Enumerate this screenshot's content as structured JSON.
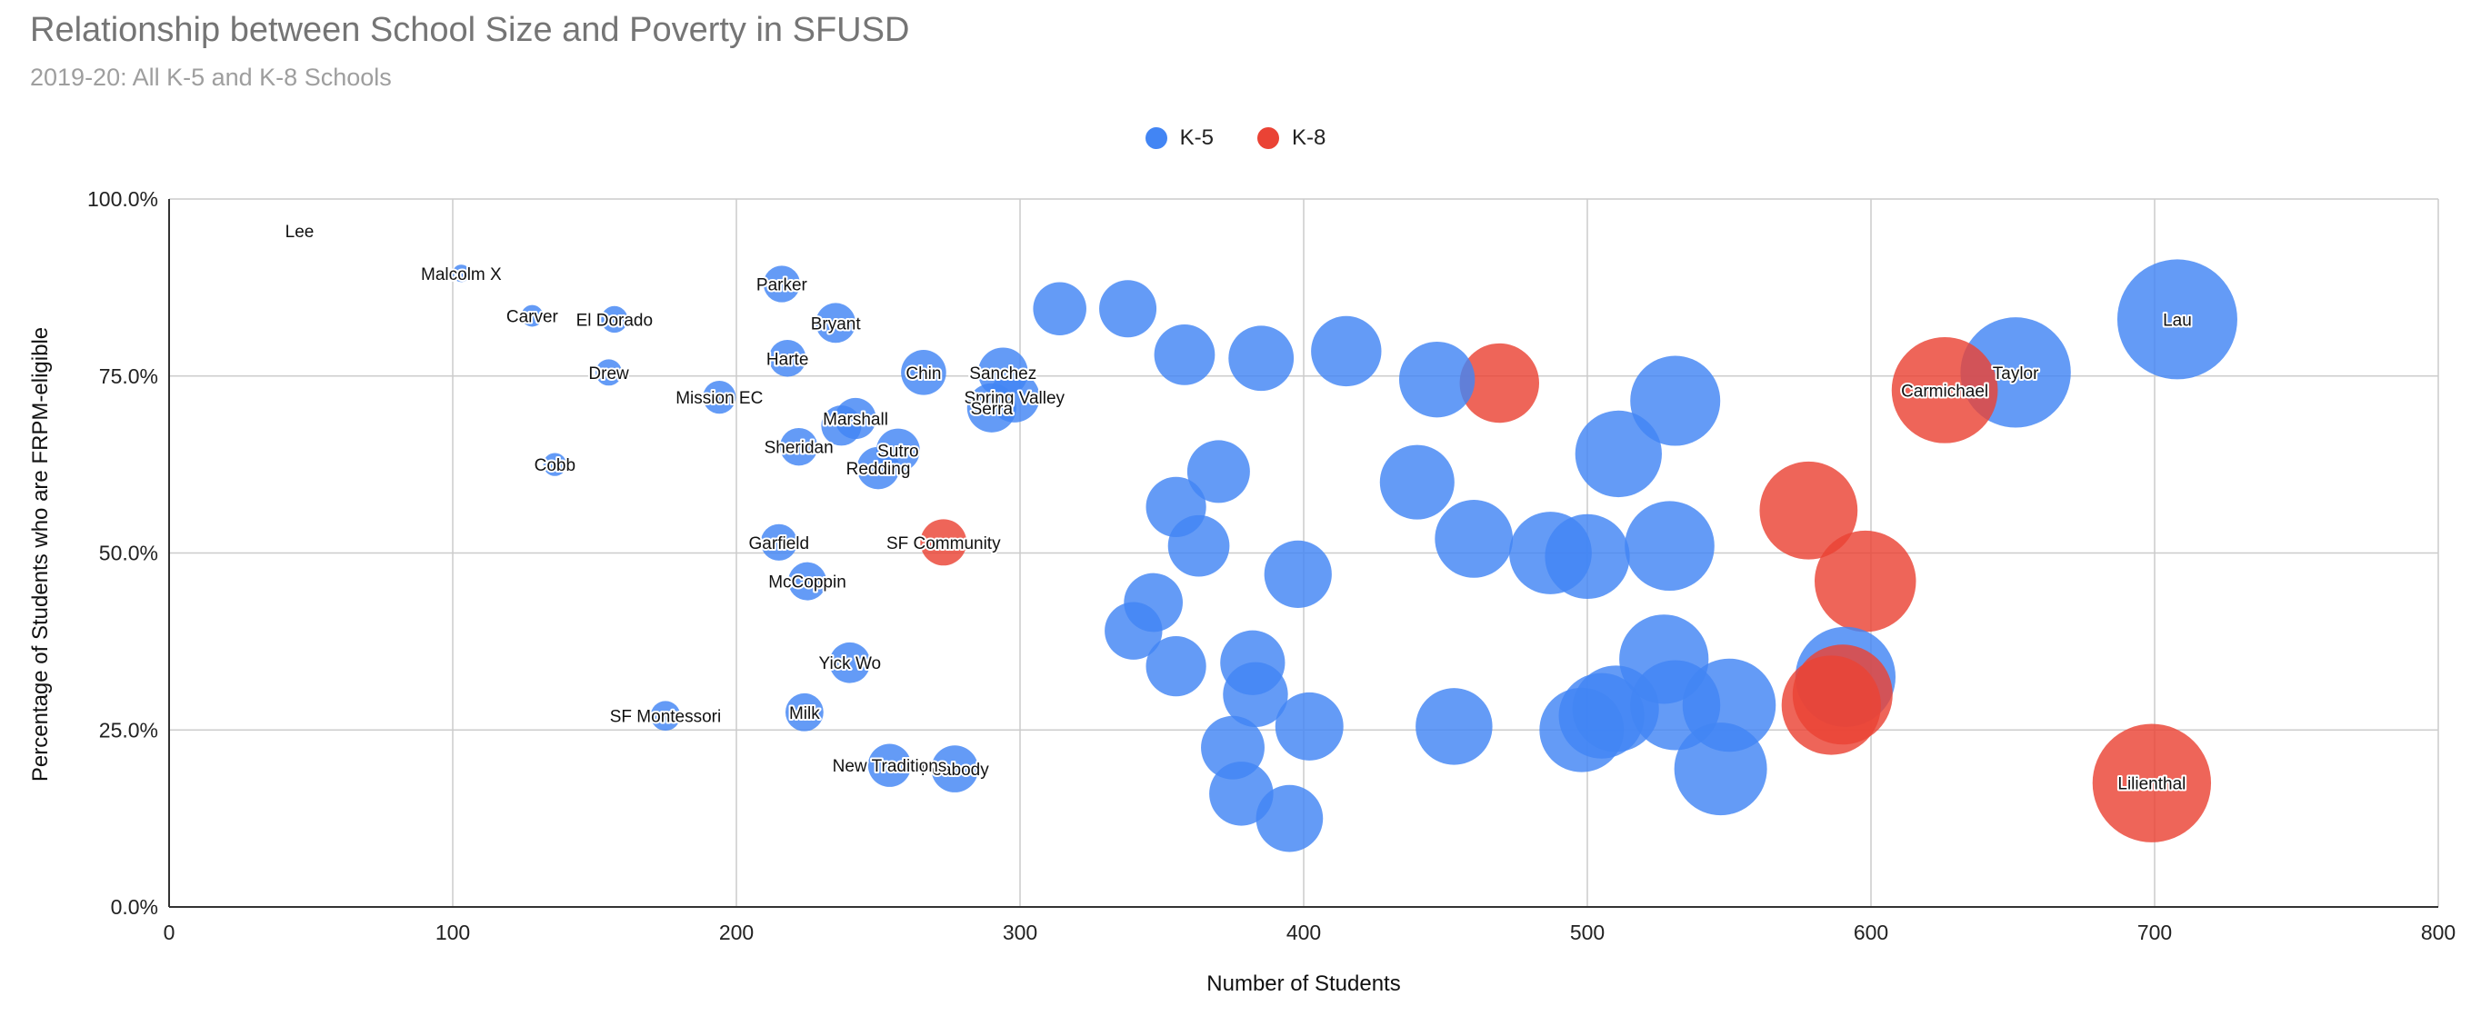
{
  "chart_data": {
    "type": "scatter",
    "title": "Relationship between School Size and Poverty in SFUSD",
    "subtitle": "2019-20: All K-5 and K-8 Schools",
    "xlabel": "Number of Students",
    "ylabel": "Percentage of Students who are FRPM-eligible",
    "xlim": [
      0,
      800
    ],
    "ylim": [
      0,
      1
    ],
    "x_ticks": [
      "0",
      "100",
      "200",
      "300",
      "400",
      "500",
      "600",
      "700",
      "800"
    ],
    "y_ticks": [
      "0.0%",
      "25.0%",
      "50.0%",
      "75.0%",
      "100.0%"
    ],
    "bubble_size": "proportional to Number of Students",
    "grid": true,
    "legend_position": "top",
    "series": [
      {
        "name": "K-5",
        "color": "#4285f4",
        "points": [
          {
            "label": "Lee",
            "x": 46,
            "y": 0.955
          },
          {
            "label": "Malcolm X",
            "x": 103,
            "y": 0.895
          },
          {
            "label": "Carver",
            "x": 128,
            "y": 0.835
          },
          {
            "label": "El Dorado",
            "x": 157,
            "y": 0.83
          },
          {
            "label": "Drew",
            "x": 155,
            "y": 0.755
          },
          {
            "label": "Cobb",
            "x": 136,
            "y": 0.625
          },
          {
            "label": "Mission EC",
            "x": 194,
            "y": 0.72
          },
          {
            "label": "Parker",
            "x": 216,
            "y": 0.88
          },
          {
            "label": "Bryant",
            "x": 235,
            "y": 0.825
          },
          {
            "label": "Harte",
            "x": 218,
            "y": 0.775
          },
          {
            "label": "Chin",
            "x": 266,
            "y": 0.755
          },
          {
            "label": "Sanchez",
            "x": 294,
            "y": 0.755
          },
          {
            "label": "Spring Valley",
            "x": 298,
            "y": 0.72
          },
          {
            "label": "Serra",
            "x": 290,
            "y": 0.705
          },
          {
            "label": "Marshall",
            "x": 242,
            "y": 0.69
          },
          {
            "label": "",
            "x": 237,
            "y": 0.68
          },
          {
            "label": "Sheridan",
            "x": 222,
            "y": 0.65
          },
          {
            "label": "Sutro",
            "x": 257,
            "y": 0.645
          },
          {
            "label": "Redding",
            "x": 250,
            "y": 0.62
          },
          {
            "label": "Garfield",
            "x": 215,
            "y": 0.515
          },
          {
            "label": "McCoppin",
            "x": 225,
            "y": 0.46
          },
          {
            "label": "Yick Wo",
            "x": 240,
            "y": 0.345
          },
          {
            "label": "Milk",
            "x": 224,
            "y": 0.275
          },
          {
            "label": "SF Montessori",
            "x": 175,
            "y": 0.27
          },
          {
            "label": "New Traditions",
            "x": 254,
            "y": 0.2
          },
          {
            "label": "Peabody",
            "x": 277,
            "y": 0.195
          },
          {
            "label": "",
            "x": 314,
            "y": 0.845
          },
          {
            "label": "",
            "x": 338,
            "y": 0.845
          },
          {
            "label": "",
            "x": 358,
            "y": 0.78
          },
          {
            "label": "",
            "x": 385,
            "y": 0.775
          },
          {
            "label": "",
            "x": 415,
            "y": 0.785
          },
          {
            "label": "",
            "x": 447,
            "y": 0.745
          },
          {
            "label": "",
            "x": 370,
            "y": 0.615
          },
          {
            "label": "",
            "x": 355,
            "y": 0.565
          },
          {
            "label": "",
            "x": 363,
            "y": 0.51
          },
          {
            "label": "",
            "x": 398,
            "y": 0.47
          },
          {
            "label": "",
            "x": 347,
            "y": 0.43
          },
          {
            "label": "",
            "x": 340,
            "y": 0.39
          },
          {
            "label": "",
            "x": 355,
            "y": 0.34
          },
          {
            "label": "",
            "x": 382,
            "y": 0.345
          },
          {
            "label": "",
            "x": 383,
            "y": 0.3
          },
          {
            "label": "",
            "x": 402,
            "y": 0.255
          },
          {
            "label": "",
            "x": 375,
            "y": 0.225
          },
          {
            "label": "",
            "x": 378,
            "y": 0.16
          },
          {
            "label": "",
            "x": 395,
            "y": 0.125
          },
          {
            "label": "",
            "x": 440,
            "y": 0.6
          },
          {
            "label": "",
            "x": 460,
            "y": 0.52
          },
          {
            "label": "",
            "x": 487,
            "y": 0.5
          },
          {
            "label": "",
            "x": 500,
            "y": 0.495
          },
          {
            "label": "",
            "x": 511,
            "y": 0.64
          },
          {
            "label": "",
            "x": 531,
            "y": 0.715
          },
          {
            "label": "",
            "x": 529,
            "y": 0.51
          },
          {
            "label": "",
            "x": 453,
            "y": 0.255
          },
          {
            "label": "",
            "x": 498,
            "y": 0.25
          },
          {
            "label": "",
            "x": 505,
            "y": 0.27
          },
          {
            "label": "",
            "x": 510,
            "y": 0.28
          },
          {
            "label": "",
            "x": 527,
            "y": 0.35
          },
          {
            "label": "",
            "x": 531,
            "y": 0.285
          },
          {
            "label": "",
            "x": 550,
            "y": 0.285
          },
          {
            "label": "",
            "x": 547,
            "y": 0.195
          },
          {
            "label": "",
            "x": 591,
            "y": 0.325
          },
          {
            "label": "Taylor",
            "x": 651,
            "y": 0.755
          },
          {
            "label": "Lau",
            "x": 708,
            "y": 0.83
          }
        ]
      },
      {
        "name": "K-8",
        "color": "#ea4335",
        "points": [
          {
            "label": "SF Community",
            "x": 273,
            "y": 0.515
          },
          {
            "label": "",
            "x": 469,
            "y": 0.74
          },
          {
            "label": "",
            "x": 578,
            "y": 0.56
          },
          {
            "label": "",
            "x": 598,
            "y": 0.46
          },
          {
            "label": "",
            "x": 586,
            "y": 0.285
          },
          {
            "label": "",
            "x": 590,
            "y": 0.3
          },
          {
            "label": "Carmichael",
            "x": 626,
            "y": 0.73
          },
          {
            "label": "Lilienthal",
            "x": 699,
            "y": 0.175
          }
        ]
      }
    ]
  }
}
